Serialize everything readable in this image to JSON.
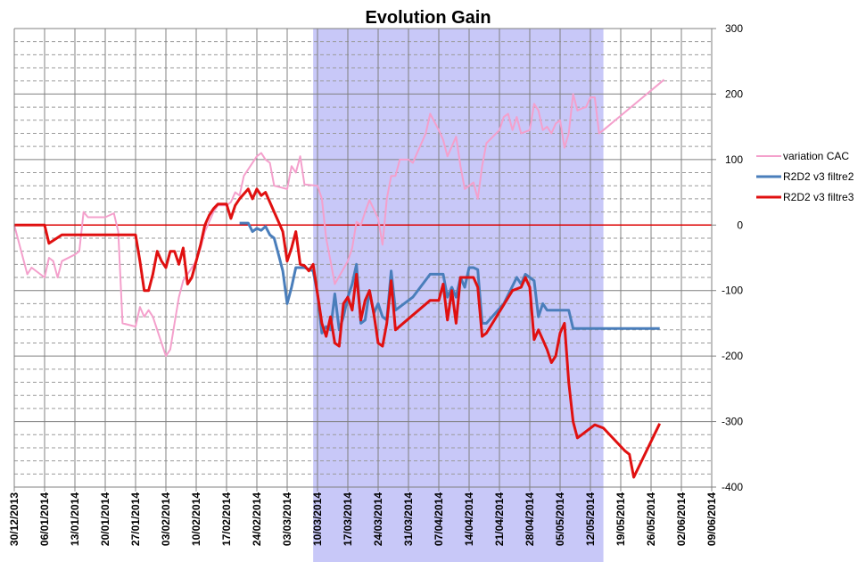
{
  "chart_data": {
    "type": "line",
    "title": "Evolution Gain",
    "xlabel": "",
    "ylabel": "",
    "ylim": [
      -400,
      300
    ],
    "yticks": [
      -400,
      -300,
      -200,
      -100,
      0,
      100,
      200,
      300
    ],
    "y_axis_side": "right",
    "grid": true,
    "legend_position": "right",
    "x_ticks": [
      "30/12/2013",
      "06/01/2014",
      "13/01/2014",
      "20/01/2014",
      "27/01/2014",
      "03/02/2014",
      "10/02/2014",
      "17/02/2014",
      "24/02/2014",
      "03/03/2014",
      "10/03/2014",
      "17/03/2014",
      "24/03/2014",
      "31/03/2014",
      "07/04/2014",
      "14/04/2014",
      "21/04/2014",
      "28/04/2014",
      "05/05/2014",
      "12/05/2014",
      "19/05/2014",
      "26/05/2014",
      "02/06/2014",
      "09/06/2014"
    ],
    "shaded_region": {
      "from": "09/03/2014",
      "to": "15/05/2014",
      "color": "#c8c8f8"
    },
    "zero_line_color": "#dd0000",
    "series": [
      {
        "name": "variation CAC",
        "color": "#f4a0cc",
        "points": [
          [
            "30/12/2013",
            0
          ],
          [
            "02/01/2014",
            -75
          ],
          [
            "03/01/2014",
            -65
          ],
          [
            "06/01/2014",
            -80
          ],
          [
            "07/01/2014",
            -50
          ],
          [
            "08/01/2014",
            -55
          ],
          [
            "09/01/2014",
            -80
          ],
          [
            "10/01/2014",
            -55
          ],
          [
            "13/01/2014",
            -45
          ],
          [
            "14/01/2014",
            -40
          ],
          [
            "15/01/2014",
            20
          ],
          [
            "16/01/2014",
            12
          ],
          [
            "20/01/2014",
            12
          ],
          [
            "22/01/2014",
            18
          ],
          [
            "23/01/2014",
            -10
          ],
          [
            "24/01/2014",
            -150
          ],
          [
            "27/01/2014",
            -155
          ],
          [
            "28/01/2014",
            -125
          ],
          [
            "29/01/2014",
            -140
          ],
          [
            "30/01/2014",
            -130
          ],
          [
            "31/01/2014",
            -140
          ],
          [
            "03/02/2014",
            -200
          ],
          [
            "04/02/2014",
            -190
          ],
          [
            "05/02/2014",
            -150
          ],
          [
            "06/02/2014",
            -110
          ],
          [
            "07/02/2014",
            -85
          ],
          [
            "10/02/2014",
            -55
          ],
          [
            "11/02/2014",
            -35
          ],
          [
            "12/02/2014",
            -10
          ],
          [
            "13/02/2014",
            5
          ],
          [
            "14/02/2014",
            20
          ],
          [
            "15/02/2014",
            30
          ],
          [
            "17/02/2014",
            30
          ],
          [
            "18/02/2014",
            35
          ],
          [
            "19/02/2014",
            50
          ],
          [
            "20/02/2014",
            45
          ],
          [
            "21/02/2014",
            75
          ],
          [
            "24/02/2014",
            105
          ],
          [
            "25/02/2014",
            110
          ],
          [
            "26/02/2014",
            100
          ],
          [
            "27/02/2014",
            95
          ],
          [
            "28/02/2014",
            60
          ],
          [
            "03/03/2014",
            55
          ],
          [
            "04/03/2014",
            90
          ],
          [
            "05/03/2014",
            80
          ],
          [
            "06/03/2014",
            105
          ],
          [
            "07/03/2014",
            62
          ],
          [
            "10/03/2014",
            60
          ],
          [
            "11/03/2014",
            40
          ],
          [
            "12/03/2014",
            -20
          ],
          [
            "13/03/2014",
            -55
          ],
          [
            "14/03/2014",
            -90
          ],
          [
            "17/03/2014",
            -55
          ],
          [
            "18/03/2014",
            -35
          ],
          [
            "19/03/2014",
            5
          ],
          [
            "20/03/2014",
            0
          ],
          [
            "21/03/2014",
            20
          ],
          [
            "22/03/2014",
            38
          ],
          [
            "24/03/2014",
            10
          ],
          [
            "25/03/2014",
            -30
          ],
          [
            "26/03/2014",
            40
          ],
          [
            "27/03/2014",
            75
          ],
          [
            "28/03/2014",
            75
          ],
          [
            "29/03/2014",
            100
          ],
          [
            "31/03/2014",
            100
          ],
          [
            "01/04/2014",
            95
          ],
          [
            "02/04/2014",
            110
          ],
          [
            "03/04/2014",
            125
          ],
          [
            "04/04/2014",
            140
          ],
          [
            "05/04/2014",
            170
          ],
          [
            "07/04/2014",
            145
          ],
          [
            "08/04/2014",
            130
          ],
          [
            "09/04/2014",
            105
          ],
          [
            "10/04/2014",
            120
          ],
          [
            "11/04/2014",
            135
          ],
          [
            "12/04/2014",
            90
          ],
          [
            "13/04/2014",
            55
          ],
          [
            "14/04/2014",
            60
          ],
          [
            "15/04/2014",
            65
          ],
          [
            "16/04/2014",
            40
          ],
          [
            "17/04/2014",
            90
          ],
          [
            "18/04/2014",
            125
          ],
          [
            "21/04/2014",
            145
          ],
          [
            "22/04/2014",
            165
          ],
          [
            "23/04/2014",
            170
          ],
          [
            "24/04/2014",
            145
          ],
          [
            "25/04/2014",
            165
          ],
          [
            "26/04/2014",
            140
          ],
          [
            "28/04/2014",
            145
          ],
          [
            "29/04/2014",
            185
          ],
          [
            "30/04/2014",
            175
          ],
          [
            "01/05/2014",
            145
          ],
          [
            "02/05/2014",
            150
          ],
          [
            "03/05/2014",
            140
          ],
          [
            "04/05/2014",
            155
          ],
          [
            "05/05/2014",
            160
          ],
          [
            "06/05/2014",
            118
          ],
          [
            "07/05/2014",
            140
          ],
          [
            "08/05/2014",
            200
          ],
          [
            "09/05/2014",
            175
          ],
          [
            "10/05/2014",
            178
          ],
          [
            "11/05/2014",
            180
          ],
          [
            "12/05/2014",
            195
          ],
          [
            "13/05/2014",
            195
          ],
          [
            "14/05/2014",
            140
          ],
          [
            "15/05/2014",
            145
          ],
          [
            "29/05/2014",
            222
          ]
        ]
      },
      {
        "name": "R2D2 v3 filtre2",
        "color": "#4a7ebb",
        "points": [
          [
            "20/02/2014",
            3
          ],
          [
            "22/02/2014",
            3
          ],
          [
            "23/02/2014",
            -10
          ],
          [
            "24/02/2014",
            -5
          ],
          [
            "25/02/2014",
            -8
          ],
          [
            "26/02/2014",
            -2
          ],
          [
            "27/02/2014",
            -15
          ],
          [
            "28/02/2014",
            -20
          ],
          [
            "01/03/2014",
            -45
          ],
          [
            "02/03/2014",
            -70
          ],
          [
            "03/03/2014",
            -120
          ],
          [
            "04/03/2014",
            -95
          ],
          [
            "05/03/2014",
            -65
          ],
          [
            "07/03/2014",
            -65
          ],
          [
            "09/03/2014",
            -70
          ],
          [
            "10/03/2014",
            -105
          ],
          [
            "11/03/2014",
            -165
          ],
          [
            "12/03/2014",
            -155
          ],
          [
            "13/03/2014",
            -160
          ],
          [
            "14/03/2014",
            -105
          ],
          [
            "15/03/2014",
            -160
          ],
          [
            "16/03/2014",
            -140
          ],
          [
            "17/03/2014",
            -110
          ],
          [
            "18/03/2014",
            -90
          ],
          [
            "19/03/2014",
            -60
          ],
          [
            "20/03/2014",
            -150
          ],
          [
            "21/03/2014",
            -145
          ],
          [
            "22/03/2014",
            -100
          ],
          [
            "23/03/2014",
            -135
          ],
          [
            "24/03/2014",
            -120
          ],
          [
            "25/03/2014",
            -140
          ],
          [
            "26/03/2014",
            -145
          ],
          [
            "27/03/2014",
            -70
          ],
          [
            "28/03/2014",
            -130
          ],
          [
            "01/04/2014",
            -110
          ],
          [
            "05/04/2014",
            -75
          ],
          [
            "08/04/2014",
            -75
          ],
          [
            "09/04/2014",
            -110
          ],
          [
            "10/04/2014",
            -95
          ],
          [
            "11/04/2014",
            -110
          ],
          [
            "12/04/2014",
            -80
          ],
          [
            "13/04/2014",
            -95
          ],
          [
            "14/04/2014",
            -65
          ],
          [
            "15/04/2014",
            -65
          ],
          [
            "16/04/2014",
            -68
          ],
          [
            "17/04/2014",
            -150
          ],
          [
            "18/04/2014",
            -150
          ],
          [
            "22/04/2014",
            -120
          ],
          [
            "25/04/2014",
            -80
          ],
          [
            "26/04/2014",
            -90
          ],
          [
            "27/04/2014",
            -75
          ],
          [
            "28/04/2014",
            -80
          ],
          [
            "29/04/2014",
            -85
          ],
          [
            "30/04/2014",
            -140
          ],
          [
            "01/05/2014",
            -120
          ],
          [
            "02/05/2014",
            -130
          ],
          [
            "07/05/2014",
            -130
          ],
          [
            "08/05/2014",
            -158
          ],
          [
            "28/05/2014",
            -158
          ]
        ]
      },
      {
        "name": "R2D2 v3 filtre3",
        "color": "#e01010",
        "points": [
          [
            "30/12/2013",
            0
          ],
          [
            "06/01/2014",
            0
          ],
          [
            "07/01/2014",
            -28
          ],
          [
            "10/01/2014",
            -15
          ],
          [
            "27/01/2014",
            -15
          ],
          [
            "28/01/2014",
            -55
          ],
          [
            "29/01/2014",
            -100
          ],
          [
            "30/01/2014",
            -100
          ],
          [
            "31/01/2014",
            -75
          ],
          [
            "01/02/2014",
            -40
          ],
          [
            "02/02/2014",
            -55
          ],
          [
            "03/02/2014",
            -65
          ],
          [
            "04/02/2014",
            -40
          ],
          [
            "05/02/2014",
            -40
          ],
          [
            "06/02/2014",
            -60
          ],
          [
            "07/02/2014",
            -35
          ],
          [
            "08/02/2014",
            -90
          ],
          [
            "09/02/2014",
            -80
          ],
          [
            "10/02/2014",
            -55
          ],
          [
            "11/02/2014",
            -30
          ],
          [
            "12/02/2014",
            0
          ],
          [
            "13/02/2014",
            15
          ],
          [
            "14/02/2014",
            25
          ],
          [
            "15/02/2014",
            32
          ],
          [
            "17/02/2014",
            32
          ],
          [
            "18/02/2014",
            10
          ],
          [
            "19/02/2014",
            30
          ],
          [
            "20/02/2014",
            40
          ],
          [
            "22/02/2014",
            55
          ],
          [
            "23/02/2014",
            40
          ],
          [
            "24/02/2014",
            55
          ],
          [
            "25/02/2014",
            45
          ],
          [
            "26/02/2014",
            50
          ],
          [
            "27/02/2014",
            35
          ],
          [
            "28/02/2014",
            20
          ],
          [
            "01/03/2014",
            5
          ],
          [
            "02/03/2014",
            -10
          ],
          [
            "03/03/2014",
            -55
          ],
          [
            "04/03/2014",
            -35
          ],
          [
            "05/03/2014",
            -10
          ],
          [
            "06/03/2014",
            -60
          ],
          [
            "07/03/2014",
            -62
          ],
          [
            "08/03/2014",
            -70
          ],
          [
            "09/03/2014",
            -60
          ],
          [
            "10/03/2014",
            -105
          ],
          [
            "11/03/2014",
            -150
          ],
          [
            "12/03/2014",
            -170
          ],
          [
            "13/03/2014",
            -140
          ],
          [
            "14/03/2014",
            -180
          ],
          [
            "15/03/2014",
            -185
          ],
          [
            "16/03/2014",
            -120
          ],
          [
            "17/03/2014",
            -110
          ],
          [
            "18/03/2014",
            -130
          ],
          [
            "19/03/2014",
            -75
          ],
          [
            "20/03/2014",
            -145
          ],
          [
            "21/03/2014",
            -115
          ],
          [
            "22/03/2014",
            -100
          ],
          [
            "23/03/2014",
            -135
          ],
          [
            "24/03/2014",
            -180
          ],
          [
            "25/03/2014",
            -185
          ],
          [
            "26/03/2014",
            -150
          ],
          [
            "27/03/2014",
            -85
          ],
          [
            "28/03/2014",
            -160
          ],
          [
            "05/04/2014",
            -115
          ],
          [
            "07/04/2014",
            -115
          ],
          [
            "08/04/2014",
            -90
          ],
          [
            "09/04/2014",
            -145
          ],
          [
            "10/04/2014",
            -100
          ],
          [
            "11/04/2014",
            -150
          ],
          [
            "12/04/2014",
            -80
          ],
          [
            "15/04/2014",
            -80
          ],
          [
            "16/04/2014",
            -95
          ],
          [
            "17/04/2014",
            -170
          ],
          [
            "18/04/2014",
            -165
          ],
          [
            "24/04/2014",
            -100
          ],
          [
            "26/04/2014",
            -95
          ],
          [
            "27/04/2014",
            -80
          ],
          [
            "28/04/2014",
            -95
          ],
          [
            "29/04/2014",
            -175
          ],
          [
            "30/04/2014",
            -160
          ],
          [
            "01/05/2014",
            -175
          ],
          [
            "02/05/2014",
            -190
          ],
          [
            "03/05/2014",
            -210
          ],
          [
            "04/05/2014",
            -200
          ],
          [
            "05/05/2014",
            -165
          ],
          [
            "06/05/2014",
            -150
          ],
          [
            "07/05/2014",
            -240
          ],
          [
            "08/05/2014",
            -300
          ],
          [
            "09/05/2014",
            -325
          ],
          [
            "10/05/2014",
            -320
          ],
          [
            "13/05/2014",
            -305
          ],
          [
            "15/05/2014",
            -310
          ],
          [
            "20/05/2014",
            -345
          ],
          [
            "21/05/2014",
            -350
          ],
          [
            "22/05/2014",
            -385
          ],
          [
            "28/05/2014",
            -303
          ]
        ]
      }
    ]
  }
}
